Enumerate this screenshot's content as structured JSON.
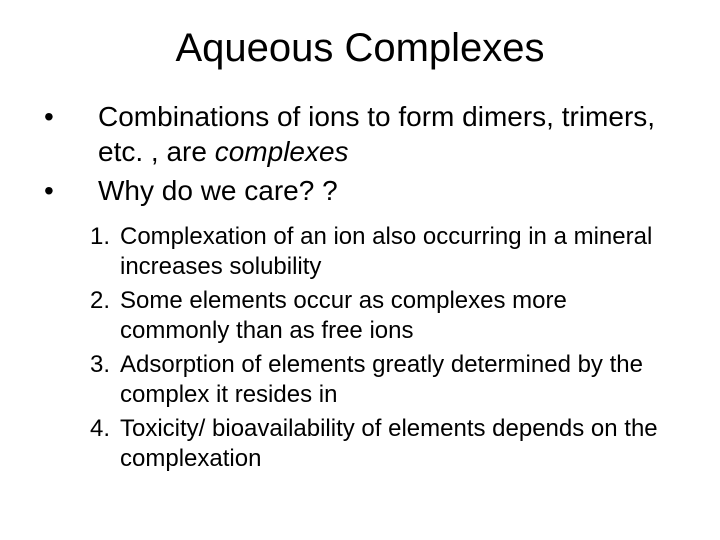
{
  "title": "Aqueous Complexes",
  "bullets": [
    {
      "marker": "•",
      "segments": [
        {
          "text": "Combinations of ions to form dimers, trimers, etc. , are ",
          "italic": false
        },
        {
          "text": "complexes",
          "italic": true
        }
      ]
    },
    {
      "marker": "•",
      "segments": [
        {
          "text": "Why do we care? ?",
          "italic": false
        }
      ]
    }
  ],
  "numbered": [
    {
      "marker": "1.",
      "text": "Complexation of an ion also occurring in a mineral increases solubility"
    },
    {
      "marker": "2.",
      "text": "Some elements occur as complexes more commonly than as free ions"
    },
    {
      "marker": "3.",
      "text": "Adsorption of elements greatly determined by the complex it resides in"
    },
    {
      "marker": "4.",
      "text": "Toxicity/ bioavailability of elements depends on the complexation"
    }
  ],
  "styling": {
    "background_color": "#ffffff",
    "text_color": "#000000",
    "title_fontsize": 40,
    "bullet_fontsize": 28,
    "numbered_fontsize": 24,
    "font_family": "Arial"
  }
}
